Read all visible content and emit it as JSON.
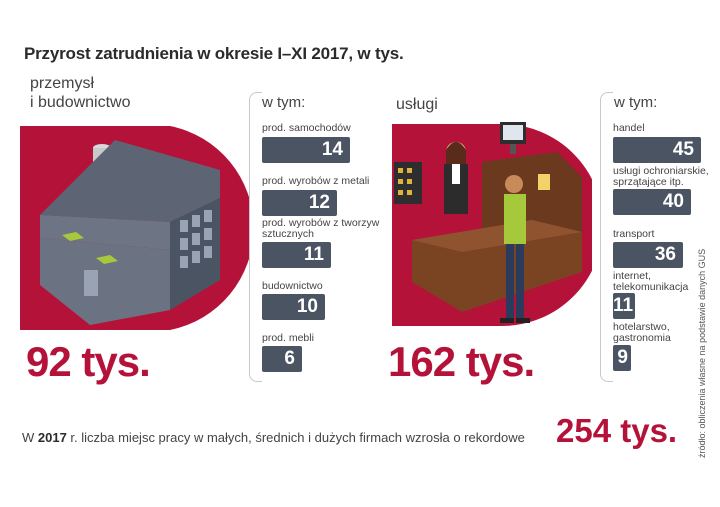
{
  "title": "Przyrost zatrudnienia w okresie  I–XI 2017, w tys.",
  "chart_data": [
    {
      "type": "bar",
      "section_label_1": "przemysł",
      "section_label_2": "i budownictwo",
      "total_label": "92 tys.",
      "subheader": "w tym:",
      "categories": [
        "prod. samochodów",
        "prod. wyrobów z metali",
        "prod. wyrobów z tworzyw sztucznych",
        "budownictwo",
        "prod. mebli"
      ],
      "values": [
        14,
        12,
        11,
        10,
        6
      ]
    },
    {
      "type": "bar",
      "section_label_1": "usługi",
      "total_label": "162 tys.",
      "subheader": "w tym:",
      "categories": [
        "handel",
        "usługi ochroniarskie, sprzątające itp.",
        "transport",
        "internet, telekomunikacja",
        "hotelarstwo, gastronomia"
      ],
      "values": [
        45,
        40,
        36,
        11,
        9
      ]
    }
  ],
  "footer": {
    "prefix": "W ",
    "year": "2017",
    "text": " r. liczba miejsc pracy w małych, średnich i dużych firmach wzrosła o rekordowe",
    "total": "254 tys."
  },
  "source": "źródło: obliczenia własne na podstawie danych GUS",
  "colors": {
    "accent": "#b5123a",
    "bar": "#4b5463",
    "text": "#444444"
  }
}
